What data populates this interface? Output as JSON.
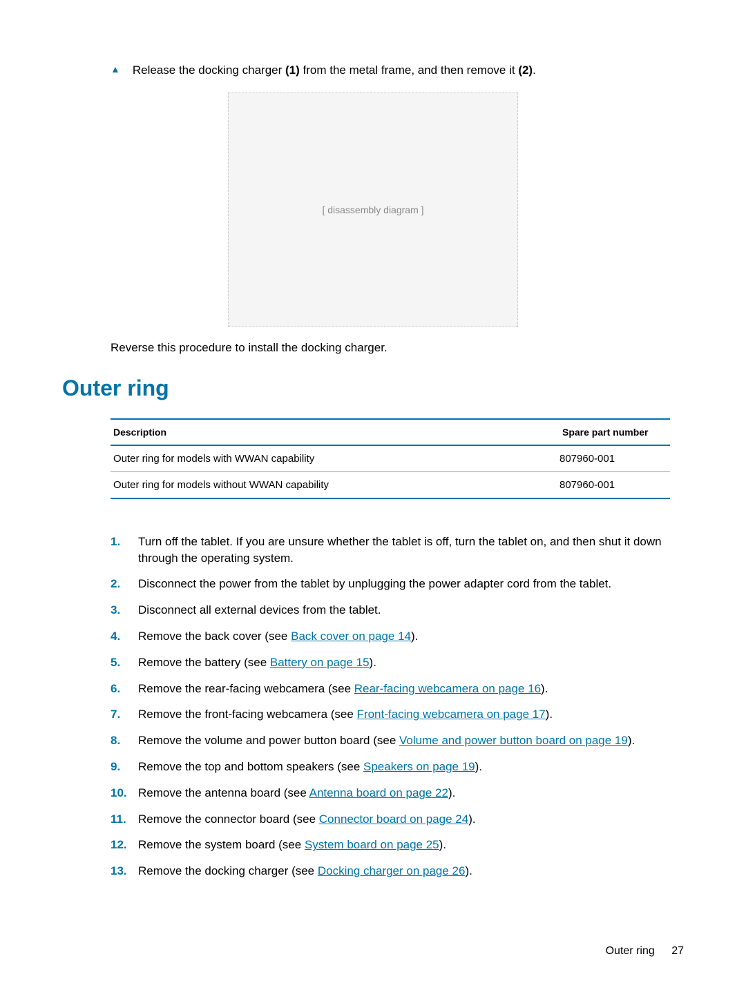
{
  "colors": {
    "accent": "#0073a8",
    "text": "#000000",
    "background": "#ffffff",
    "row_border": "#999999"
  },
  "top_instruction": {
    "bullet": "▲",
    "pre": "Release the docking charger ",
    "bold1": "(1)",
    "mid": " from the metal frame, and then remove it ",
    "bold2": "(2)",
    "post": "."
  },
  "diagram_placeholder": "[ disassembly diagram ]",
  "reverse_text": "Reverse this procedure to install the docking charger.",
  "section_title": "Outer ring",
  "table": {
    "columns": [
      "Description",
      "Spare part number"
    ],
    "rows": [
      [
        "Outer ring for models with WWAN capability",
        "807960-001"
      ],
      [
        "Outer ring for models without WWAN capability",
        "807960-001"
      ]
    ]
  },
  "steps": [
    {
      "pre": "Turn off the tablet. If you are unsure whether the tablet is off, turn the tablet on, and then shut it down through the operating system.",
      "link": "",
      "post": ""
    },
    {
      "pre": "Disconnect the power from the tablet by unplugging the power adapter cord from the tablet.",
      "link": "",
      "post": ""
    },
    {
      "pre": "Disconnect all external devices from the tablet.",
      "link": "",
      "post": ""
    },
    {
      "pre": "Remove the back cover (see ",
      "link": "Back cover on page 14",
      "post": ")."
    },
    {
      "pre": "Remove the battery (see ",
      "link": "Battery on page 15",
      "post": ")."
    },
    {
      "pre": "Remove the rear-facing webcamera (see ",
      "link": "Rear-facing webcamera on page 16",
      "post": ")."
    },
    {
      "pre": "Remove the front-facing webcamera (see ",
      "link": "Front-facing webcamera on page 17",
      "post": ")."
    },
    {
      "pre": "Remove the volume and power button board (see ",
      "link": "Volume and power button board on page 19",
      "post": ")."
    },
    {
      "pre": "Remove the top and bottom speakers (see ",
      "link": "Speakers on page 19",
      "post": ")."
    },
    {
      "pre": "Remove the antenna board (see ",
      "link": "Antenna board on page 22",
      "post": ")."
    },
    {
      "pre": "Remove the connector board (see ",
      "link": "Connector board on page 24",
      "post": ")."
    },
    {
      "pre": "Remove the system board (see ",
      "link": "System board on page 25",
      "post": ")."
    },
    {
      "pre": "Remove the docking charger (see ",
      "link": "Docking charger on page 26",
      "post": ")."
    }
  ],
  "footer": {
    "title": "Outer ring",
    "page": "27"
  }
}
